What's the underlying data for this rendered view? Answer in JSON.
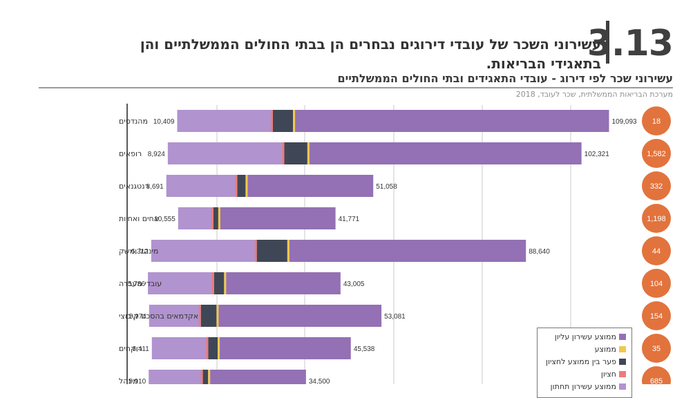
{
  "header": {
    "figure_number": "3.13",
    "headline": "עשירוני השכר של עובדי דירוגים נבחרים הן בבתי החולים הממשלתיים והן בתאגידי הבריאות."
  },
  "chart_data": {
    "type": "bar",
    "title": "עשירוני שכר לפי דירוג - עובדי התאגידים ובתי החולים הממשלתיים",
    "source": "מערכת הבריאות הממשלתית, שכר לעובד, 2018",
    "categories": [
      "מהנדסים",
      "רופאים",
      "רנטגנאים",
      "אחים ואחיות",
      "מינהל ומשק",
      "עובדי מעבדה",
      "אקדמאים בהסכם קיבוצי",
      "רוקחים",
      "מינהל"
    ],
    "bottom_decile": [
      10409,
      8924,
      8691,
      10555,
      6312,
      5786,
      5974,
      6411,
      5910
    ],
    "top_decile": [
      109093,
      102321,
      51058,
      41771,
      88640,
      43005,
      53081,
      45538,
      34500
    ],
    "median_to_mean_gap": [
      7000,
      8000,
      3000,
      1200,
      10500,
      3600,
      5500,
      3400,
      2000
    ],
    "employee_counts": [
      "18",
      "1,582",
      "332",
      "1,198",
      "44",
      "104",
      "154",
      "35",
      "685"
    ],
    "series": [
      {
        "name": "ממוצע עשירון עליון",
        "color": "#9470b4"
      },
      {
        "name": "ממוצע",
        "color": "#f2c84b"
      },
      {
        "name": "פער בין ממוצע לחציון",
        "color": "#3f4756"
      },
      {
        "name": "חציון",
        "color": "#ee7b7b"
      },
      {
        "name": "ממוצע עשירון תחתון",
        "color": "#b193cf"
      }
    ],
    "bubble_color": "#e2733d",
    "grid": true
  }
}
